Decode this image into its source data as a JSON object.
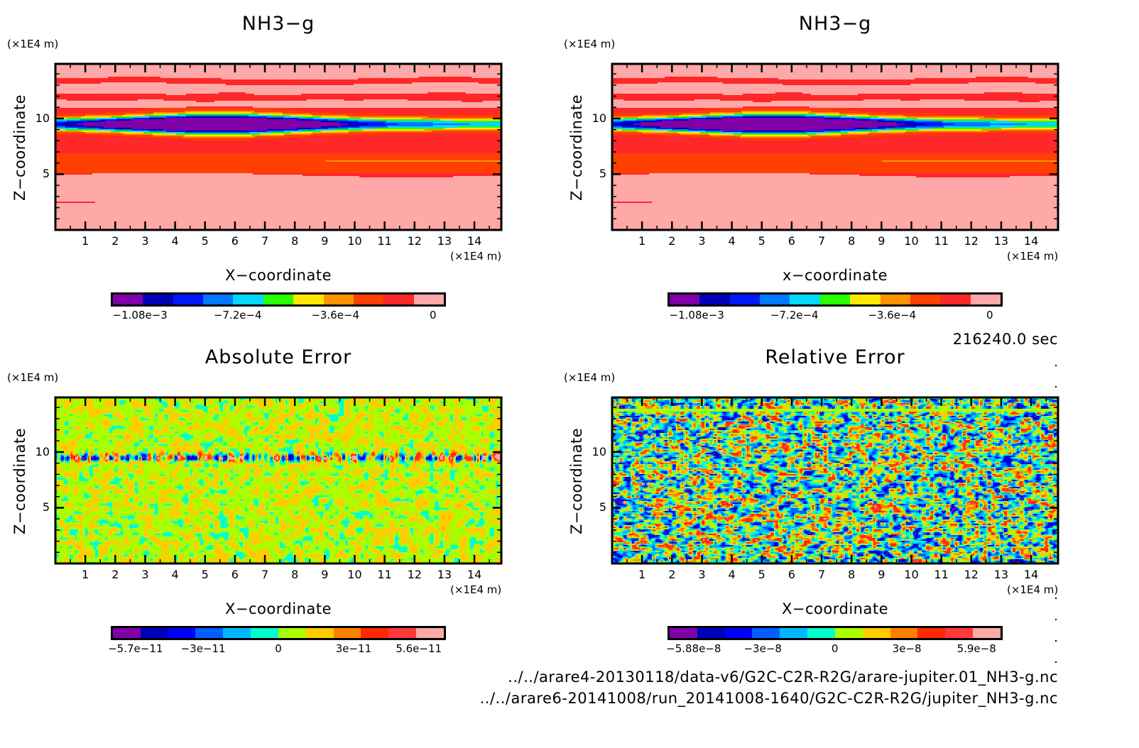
{
  "chart_data": [
    {
      "id": "top-left",
      "type": "heatmap",
      "title": "NH3-g",
      "xlabel": "X-coordinate",
      "ylabel": "Z-coordinate",
      "x_unit": "(×1E4 m)",
      "y_unit": "(×1E4 m)",
      "xlim": [
        0,
        14.9
      ],
      "ylim": [
        0,
        14.9
      ],
      "x_ticks": [
        1,
        2,
        3,
        4,
        5,
        6,
        7,
        8,
        9,
        10,
        11,
        12,
        13,
        14
      ],
      "y_ticks": [
        5,
        10
      ],
      "pattern": "bands",
      "colorbar": {
        "colors": [
          "#8000a8",
          "#0000b8",
          "#0018ff",
          "#0078ff",
          "#00d8ff",
          "#28ff00",
          "#ffe800",
          "#ff9400",
          "#ff4000",
          "#ff2828",
          "#ffa8a8"
        ],
        "tick_labels": [
          "-1.08e-3",
          "-7.2e-4",
          "-3.6e-4",
          "0"
        ],
        "tick_values": [
          -0.00108,
          -0.00072,
          -0.00036,
          0
        ],
        "range": [
          -0.00118,
          4e-05
        ]
      }
    },
    {
      "id": "top-right",
      "type": "heatmap",
      "title": "NH3-g",
      "xlabel": "x-coordinate",
      "ylabel": "Z-coordinate",
      "x_unit": "(×1E4 m)",
      "y_unit": "(×1E4 m)",
      "xlim": [
        0,
        14.9
      ],
      "ylim": [
        0,
        14.9
      ],
      "x_ticks": [
        1,
        2,
        3,
        4,
        5,
        6,
        7,
        8,
        9,
        10,
        11,
        12,
        13,
        14
      ],
      "y_ticks": [
        5,
        10
      ],
      "pattern": "bands",
      "colorbar": {
        "colors": [
          "#8000a8",
          "#0000b8",
          "#0018ff",
          "#0078ff",
          "#00d8ff",
          "#28ff00",
          "#ffe800",
          "#ff9400",
          "#ff4000",
          "#ff2828",
          "#ffa8a8"
        ],
        "tick_labels": [
          "-1.08e-3",
          "-7.2e-4",
          "-3.6e-4",
          "0"
        ],
        "tick_values": [
          -0.00108,
          -0.00072,
          -0.00036,
          0
        ],
        "range": [
          -0.00118,
          4e-05
        ]
      }
    },
    {
      "id": "bottom-left",
      "type": "heatmap",
      "title": "Absolute Error",
      "xlabel": "X-coordinate",
      "ylabel": "Z-coordinate",
      "x_unit": "(×1E4 m)",
      "y_unit": "(×1E4 m)",
      "xlim": [
        0,
        14.9
      ],
      "ylim": [
        0,
        14.9
      ],
      "x_ticks": [
        1,
        2,
        3,
        4,
        5,
        6,
        7,
        8,
        9,
        10,
        11,
        12,
        13,
        14
      ],
      "y_ticks": [
        5,
        10
      ],
      "pattern": "abs-noise",
      "colorbar": {
        "colors": [
          "#8000a8",
          "#0000b8",
          "#0000ff",
          "#0060ff",
          "#00b8ff",
          "#00ffcc",
          "#a8ff00",
          "#ffcc00",
          "#ff8000",
          "#ff2800",
          "#ff3838",
          "#ffa8a8"
        ],
        "tick_labels": [
          "-5.7e-11",
          "-3e-11",
          "0",
          "3e-11",
          "5.6e-11"
        ],
        "tick_values": [
          -5.7e-11,
          -3e-11,
          0,
          3e-11,
          5.6e-11
        ],
        "range": [
          -6.6e-11,
          6.6e-11
        ]
      }
    },
    {
      "id": "bottom-right",
      "type": "heatmap",
      "title": "Relative Error",
      "xlabel": "X-coordinate",
      "ylabel": "Z-coordinate",
      "x_unit": "(×1E4 m)",
      "y_unit": "(×1E4 m)",
      "xlim": [
        0,
        14.9
      ],
      "ylim": [
        0,
        14.9
      ],
      "x_ticks": [
        1,
        2,
        3,
        4,
        5,
        6,
        7,
        8,
        9,
        10,
        11,
        12,
        13,
        14
      ],
      "y_ticks": [
        5,
        10
      ],
      "pattern": "rel-noise",
      "colorbar": {
        "colors": [
          "#8000a8",
          "#0000b8",
          "#0000ff",
          "#0060ff",
          "#00b8ff",
          "#00ffcc",
          "#a8ff00",
          "#ffcc00",
          "#ff8000",
          "#ff2800",
          "#ff3838",
          "#ffa8a8"
        ],
        "tick_labels": [
          "-5.88e-8",
          "-3e-8",
          "0",
          "3e-8",
          "5.9e-8"
        ],
        "tick_values": [
          -5.88e-08,
          -3e-08,
          0,
          3e-08,
          5.9e-08
        ],
        "range": [
          -6.88e-08,
          6.9e-08
        ]
      }
    }
  ],
  "annotations": {
    "time": "216240.0 sec",
    "file_1": "../../arare4-20130118/data-v6/G2C-C2R-R2G/arare-jupiter.01_NH3-g.nc",
    "file_2": "../../arare6-20141008/run_20141008-1640/G2C-C2R-R2G/jupiter_NH3-g.nc"
  }
}
